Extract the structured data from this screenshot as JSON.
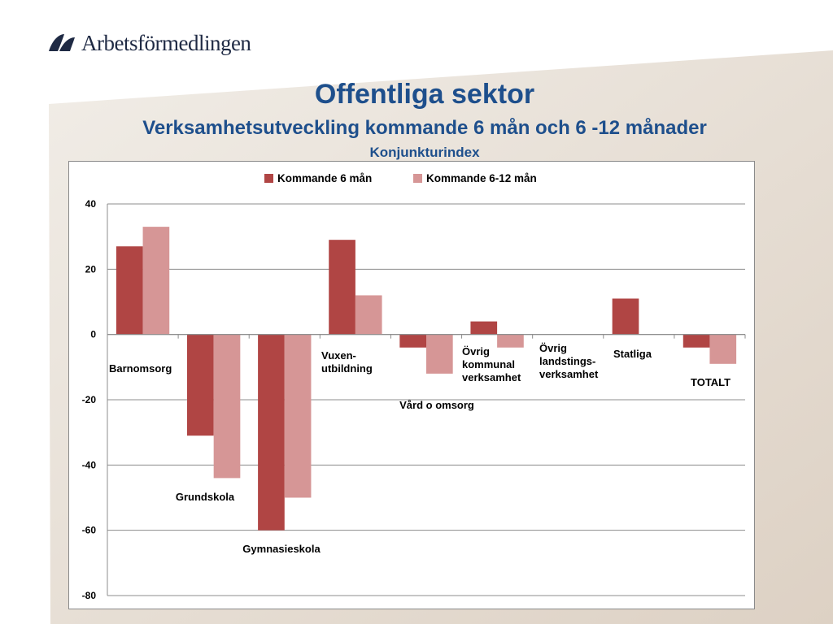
{
  "logo": {
    "text": "Arbetsförmedlingen"
  },
  "titles": {
    "title": "Offentliga sektor",
    "subtitle": "Verksamhetsutveckling kommande 6 mån och 6 -12 månader",
    "subsubtitle": "Konjunkturindex"
  },
  "colors": {
    "title": "#1e4f8c",
    "series1": "#b04544",
    "series2": "#d69696"
  },
  "chart_data": {
    "type": "bar",
    "title": "Konjunkturindex",
    "xlabel": "",
    "ylabel": "",
    "ylim": [
      -80,
      40
    ],
    "yticks": [
      40,
      20,
      0,
      -20,
      -40,
      -60,
      -80
    ],
    "grid": true,
    "legend_position": "top",
    "categories": [
      [
        "Barnomsorg"
      ],
      [
        "Grundskola"
      ],
      [
        "Gymnasieskola"
      ],
      [
        "Vuxen-",
        "utbildning"
      ],
      [
        "Vård o omsorg"
      ],
      [
        "Övrig",
        "kommunal",
        "verksamhet"
      ],
      [
        "Övrig",
        "landstings-",
        "verksamhet"
      ],
      [
        "Statliga"
      ],
      [
        "TOTALT"
      ]
    ],
    "series": [
      {
        "name": "Kommande 6 mån",
        "values": [
          27,
          -31,
          -60,
          29,
          -4,
          4,
          0,
          11,
          -4
        ]
      },
      {
        "name": "Kommande 6-12 mån",
        "values": [
          33,
          -44,
          -50,
          12,
          -12,
          -4,
          0,
          0,
          -9
        ]
      }
    ]
  }
}
